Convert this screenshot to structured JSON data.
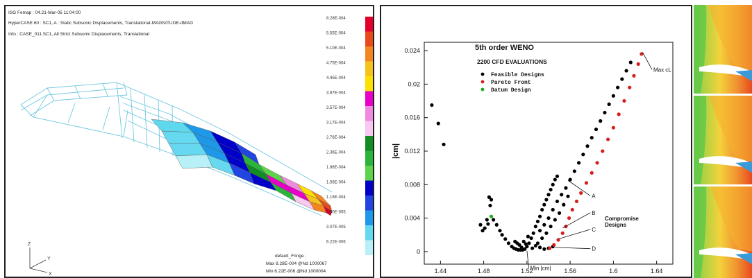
{
  "left_figure": {
    "header_lines": [
      "ISG Femap : 04.21-Mar-05 11:04:00",
      "HyperCASE 60 : SC1, A : Static Subsonic Displacements, Translational-MAGNITUDE-dMAG",
      "Info : CASE_011.SC1, All Strict Subsonic Displacements, Translational"
    ],
    "legend_values": [
      "8.28E-004",
      "5.55E-004",
      "5.10E-004",
      "4.75E-004",
      "4.45E-004",
      "3.87E-004",
      "3.57E-004",
      "3.17E-004",
      "2.76E-004",
      "2.36E-004",
      "1.96E-004",
      "1.58E-004",
      "1.15E-004",
      "7.00E-005",
      "3.07E-005",
      "6.22E-006"
    ],
    "legend_colors": [
      "#e4002b",
      "#e84a1c",
      "#f4861f",
      "#f6c31c",
      "#fde000",
      "#e800c8",
      "#f08ae0",
      "#f8c8f0",
      "#138c24",
      "#2ab53a",
      "#5ed44a",
      "#0000c8",
      "#2244e0",
      "#1e98e8",
      "#66d8f0",
      "#b8f0f8"
    ],
    "footer_lines": [
      "default_Fringe :",
      "Max 8.28E-004 @Nd 1000067",
      "Min 6.22E-006 @Nd 1000004"
    ],
    "triad_labels": [
      "Z",
      "Y",
      "X"
    ]
  },
  "chart_data": {
    "type": "scatter",
    "title": "5th order WENO",
    "subtitle": "2200 CFD EVALUATIONS",
    "ylabel": "|cm|",
    "xlabel": "",
    "xlim": [
      1.425,
      1.655
    ],
    "ylim": [
      -0.0015,
      0.025
    ],
    "xticks": [
      "1.44",
      "1.48",
      "1.52",
      "1.56",
      "1.6",
      "1.64"
    ],
    "yticks": [
      "0",
      "0.004",
      "0.008",
      "0.012",
      "0.016",
      "0.02",
      "0.024"
    ],
    "legend": {
      "position": "top-center",
      "entries": [
        {
          "label": "Feasible Designs",
          "color": "#000000"
        },
        {
          "label": "Pareto Front",
          "color": "#d42020"
        },
        {
          "label": "Datum Design",
          "color": "#18b018"
        }
      ]
    },
    "series": [
      {
        "name": "Feasible Designs",
        "color": "#000000",
        "points": [
          [
            1.432,
            0.0175
          ],
          [
            1.438,
            0.0153
          ],
          [
            1.443,
            0.0128
          ],
          [
            1.485,
            0.0065
          ],
          [
            1.487,
            0.0062
          ],
          [
            1.486,
            0.0055
          ],
          [
            1.477,
            0.0032
          ],
          [
            1.479,
            0.0025
          ],
          [
            1.481,
            0.0028
          ],
          [
            1.483,
            0.0038
          ],
          [
            1.484,
            0.0033
          ],
          [
            1.489,
            0.0038
          ],
          [
            1.492,
            0.0032
          ],
          [
            1.495,
            0.0025
          ],
          [
            1.497,
            0.002
          ],
          [
            1.5,
            0.0015
          ],
          [
            1.503,
            0.001
          ],
          [
            1.506,
            0.0006
          ],
          [
            1.508,
            0.0004
          ],
          [
            1.51,
            0.0003
          ],
          [
            1.512,
            0.0002
          ],
          [
            1.514,
            0.0002
          ],
          [
            1.516,
            0.0002
          ],
          [
            1.518,
            0.0003
          ],
          [
            1.52,
            0.0006
          ],
          [
            1.522,
            0.001
          ],
          [
            1.524,
            0.0016
          ],
          [
            1.526,
            0.0022
          ],
          [
            1.528,
            0.003
          ],
          [
            1.53,
            0.0036
          ],
          [
            1.532,
            0.0042
          ],
          [
            1.534,
            0.005
          ],
          [
            1.536,
            0.0056
          ],
          [
            1.538,
            0.0062
          ],
          [
            1.54,
            0.0068
          ],
          [
            1.542,
            0.0074
          ],
          [
            1.544,
            0.008
          ],
          [
            1.546,
            0.0086
          ],
          [
            1.548,
            0.009
          ],
          [
            1.532,
            0.0025
          ],
          [
            1.536,
            0.0032
          ],
          [
            1.54,
            0.004
          ],
          [
            1.544,
            0.005
          ],
          [
            1.548,
            0.006
          ],
          [
            1.552,
            0.0068
          ],
          [
            1.556,
            0.0076
          ],
          [
            1.56,
            0.0086
          ],
          [
            1.564,
            0.0096
          ],
          [
            1.568,
            0.0106
          ],
          [
            1.572,
            0.0116
          ],
          [
            1.576,
            0.0126
          ],
          [
            1.58,
            0.0136
          ],
          [
            1.584,
            0.0146
          ],
          [
            1.588,
            0.0156
          ],
          [
            1.592,
            0.0166
          ],
          [
            1.596,
            0.0176
          ],
          [
            1.6,
            0.0186
          ],
          [
            1.604,
            0.0196
          ],
          [
            1.608,
            0.0206
          ],
          [
            1.612,
            0.0216
          ],
          [
            1.616,
            0.0226
          ],
          [
            1.53,
            0.001
          ],
          [
            1.534,
            0.0016
          ],
          [
            1.538,
            0.0022
          ],
          [
            1.542,
            0.003
          ],
          [
            1.546,
            0.0038
          ],
          [
            1.55,
            0.0046
          ],
          [
            1.554,
            0.0056
          ],
          [
            1.558,
            0.0066
          ],
          [
            1.525,
            0.0004
          ],
          [
            1.528,
            0.0007
          ],
          [
            1.532,
            0.0005
          ],
          [
            1.536,
            0.0003
          ],
          [
            1.54,
            0.0004
          ],
          [
            1.544,
            0.0006
          ],
          [
            1.513,
            0.0008
          ],
          [
            1.517,
            0.0012
          ],
          [
            1.521,
            0.0018
          ],
          [
            1.519,
            0.0009
          ],
          [
            1.515,
            0.0005
          ],
          [
            1.511,
            0.001
          ],
          [
            1.509,
            0.0012
          ]
        ]
      },
      {
        "name": "Pareto Front",
        "color": "#d42020",
        "points": [
          [
            1.541,
            0.0004
          ],
          [
            1.545,
            0.0008
          ],
          [
            1.549,
            0.0014
          ],
          [
            1.553,
            0.0022
          ],
          [
            1.556,
            0.003
          ],
          [
            1.559,
            0.004
          ],
          [
            1.562,
            0.005
          ],
          [
            1.566,
            0.006
          ],
          [
            1.57,
            0.007
          ],
          [
            1.575,
            0.0082
          ],
          [
            1.58,
            0.0094
          ],
          [
            1.585,
            0.0106
          ],
          [
            1.59,
            0.012
          ],
          [
            1.595,
            0.0134
          ],
          [
            1.6,
            0.0148
          ],
          [
            1.605,
            0.0164
          ],
          [
            1.61,
            0.018
          ],
          [
            1.615,
            0.0196
          ],
          [
            1.619,
            0.021
          ],
          [
            1.623,
            0.0224
          ],
          [
            1.626,
            0.0236
          ]
        ]
      },
      {
        "name": "Datum Design",
        "color": "#18b018",
        "points": [
          [
            1.487,
            0.0042
          ]
        ]
      }
    ],
    "annotations": [
      {
        "text": "Max cL",
        "x": 1.627,
        "y": 0.0238
      },
      {
        "text": "A",
        "x": 1.558,
        "y": 0.0085
      },
      {
        "text": "B",
        "x": 1.553,
        "y": 0.0028
      },
      {
        "text": "C",
        "x": 1.549,
        "y": 0.0015
      },
      {
        "text": "D",
        "x": 1.546,
        "y": 0.0005
      },
      {
        "text": "Min |cm|",
        "x": 1.52,
        "y": 0.0001
      },
      {
        "text": "Compromise Designs",
        "x": 1.593,
        "y": 0.003
      }
    ]
  }
}
